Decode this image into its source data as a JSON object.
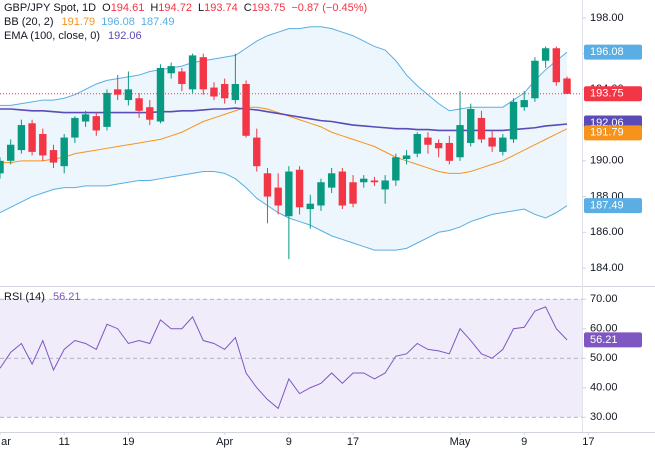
{
  "chart_data": [
    {
      "type": "candlestick",
      "title": "GBP/JPY Spot, 1D",
      "ohlc_prefixes": [
        "O",
        "H",
        "L",
        "C"
      ],
      "change_label": "−0.87 (−0.45%)",
      "up_color": "#089981",
      "down_color": "#f23645",
      "open": [
        189.3,
        190.0,
        190.6,
        192.1,
        191.5,
        190.6,
        189.7,
        191.3,
        192.2,
        192.5,
        191.9,
        194.0,
        193.4,
        193.5,
        193.0,
        192.2,
        194.9,
        195.0,
        194.0,
        195.8,
        194.1,
        194.3,
        193.4,
        194.3,
        191.3,
        189.3,
        188.5,
        186.9,
        189.5,
        187.3,
        187.5,
        188.5,
        189.4,
        188.8,
        188.8,
        188.9,
        188.4,
        188.9,
        190.1,
        190.4,
        191.3,
        191.0,
        191.0,
        190.2,
        191.0,
        192.4,
        191.3,
        190.5,
        191.2,
        193.0,
        193.5,
        195.6,
        196.3,
        194.61
      ],
      "high": [
        190.2,
        191.2,
        192.3,
        192.3,
        191.8,
        190.9,
        191.5,
        192.5,
        192.8,
        192.7,
        194.0,
        194.8,
        195.0,
        193.8,
        193.4,
        195.4,
        195.5,
        195.2,
        196.0,
        196.0,
        194.4,
        194.6,
        196.0,
        194.5,
        191.8,
        189.6,
        189.3,
        189.7,
        189.7,
        188.1,
        189.0,
        189.6,
        189.6,
        189.2,
        189.2,
        189.1,
        189.2,
        190.4,
        190.6,
        191.6,
        191.6,
        191.2,
        191.4,
        193.9,
        193.2,
        192.8,
        191.7,
        191.5,
        193.5,
        193.9,
        195.8,
        196.4,
        196.4,
        194.72
      ],
      "low": [
        189.0,
        189.8,
        190.4,
        190.3,
        190.0,
        189.6,
        189.3,
        191.0,
        191.9,
        191.4,
        191.7,
        193.4,
        193.1,
        192.4,
        192.0,
        192.1,
        194.6,
        193.9,
        193.8,
        193.7,
        193.4,
        193.2,
        193.2,
        191.3,
        189.4,
        186.5,
        187.0,
        184.5,
        187.0,
        186.2,
        187.2,
        188.2,
        187.3,
        187.4,
        188.5,
        188.6,
        187.6,
        188.6,
        189.8,
        190.2,
        190.4,
        190.2,
        189.8,
        190.0,
        190.8,
        191.0,
        190.5,
        190.3,
        191.0,
        192.8,
        193.3,
        195.2,
        194.2,
        193.74
      ],
      "close": [
        190.0,
        190.9,
        192.0,
        190.5,
        190.3,
        189.9,
        191.3,
        192.4,
        192.6,
        191.7,
        193.8,
        193.7,
        194.0,
        192.8,
        192.3,
        195.2,
        195.3,
        194.3,
        195.9,
        194.0,
        193.6,
        193.5,
        194.3,
        191.4,
        189.7,
        188.0,
        187.5,
        189.4,
        187.4,
        187.6,
        188.8,
        189.3,
        187.5,
        187.6,
        189.0,
        188.8,
        188.9,
        190.2,
        190.3,
        191.5,
        190.9,
        190.7,
        190.0,
        192.0,
        192.9,
        191.2,
        190.8,
        191.3,
        193.3,
        193.4,
        195.6,
        196.3,
        194.4,
        193.75
      ],
      "bb": {
        "label": "BB (20, 2)",
        "basis_color": "#f7931a",
        "band_color": "#5aaee3",
        "fill_color": "#edf6fc",
        "basis": [
          189.9,
          189.9,
          190.0,
          190.0,
          190.0,
          190.1,
          190.2,
          190.4,
          190.5,
          190.6,
          190.7,
          190.8,
          190.9,
          191.0,
          191.1,
          191.2,
          191.4,
          191.6,
          191.9,
          192.2,
          192.4,
          192.6,
          192.8,
          193.0,
          193.0,
          192.9,
          192.7,
          192.5,
          192.3,
          192.1,
          191.9,
          191.6,
          191.4,
          191.2,
          191.0,
          190.8,
          190.5,
          190.2,
          190.0,
          189.8,
          189.6,
          189.4,
          189.3,
          189.3,
          189.4,
          189.6,
          189.8,
          190.0,
          190.3,
          190.6,
          190.9,
          191.2,
          191.5,
          191.79
        ],
        "upper": [
          193.1,
          193.1,
          193.2,
          193.3,
          193.4,
          193.4,
          193.5,
          193.7,
          194.0,
          194.3,
          194.5,
          194.6,
          194.7,
          194.8,
          195.0,
          195.1,
          195.2,
          195.3,
          195.5,
          195.6,
          195.7,
          195.8,
          195.9,
          196.3,
          196.7,
          197.0,
          197.2,
          197.4,
          197.4,
          197.5,
          197.5,
          197.4,
          197.2,
          197.0,
          196.7,
          196.4,
          196.2,
          195.6,
          194.8,
          194.2,
          193.7,
          193.2,
          192.8,
          192.9,
          193.0,
          193.0,
          193.0,
          193.0,
          193.4,
          193.8,
          194.5,
          195.1,
          195.6,
          196.08
        ],
        "lower": [
          187.1,
          187.4,
          187.7,
          188.0,
          188.2,
          188.4,
          188.5,
          188.5,
          188.6,
          188.6,
          188.6,
          188.7,
          188.8,
          188.9,
          188.9,
          189.0,
          189.1,
          189.2,
          189.3,
          189.4,
          189.4,
          189.3,
          189.0,
          188.5,
          187.9,
          187.5,
          187.1,
          186.8,
          186.6,
          186.4,
          186.1,
          185.8,
          185.6,
          185.4,
          185.2,
          185.0,
          185.0,
          185.0,
          185.1,
          185.4,
          185.7,
          186.0,
          186.1,
          186.3,
          186.6,
          186.8,
          187.0,
          187.1,
          187.2,
          187.3,
          187.0,
          186.8,
          187.1,
          187.49
        ]
      },
      "ema": {
        "label": "EMA (100, close, 0)",
        "color": "#5b4bb7",
        "values": [
          192.9,
          192.9,
          192.85,
          192.8,
          192.8,
          192.75,
          192.7,
          192.7,
          192.7,
          192.7,
          192.7,
          192.7,
          192.7,
          192.7,
          192.7,
          192.75,
          192.75,
          192.8,
          192.8,
          192.85,
          192.9,
          192.9,
          192.95,
          192.9,
          192.85,
          192.75,
          192.65,
          192.55,
          192.45,
          192.35,
          192.25,
          192.2,
          192.1,
          192.0,
          191.95,
          191.9,
          191.85,
          191.8,
          191.8,
          191.75,
          191.75,
          191.7,
          191.7,
          191.7,
          191.7,
          191.7,
          191.7,
          191.7,
          191.75,
          191.8,
          191.85,
          191.95,
          192.0,
          192.06
        ]
      },
      "xlim": [
        0,
        54.4
      ],
      "ylim": [
        183.05,
        199.0
      ],
      "yticks": [
        {
          "value": 184,
          "label": "184.00"
        },
        {
          "value": 186,
          "label": "186.00"
        },
        {
          "value": 188,
          "label": "188.00"
        },
        {
          "value": 190,
          "label": "190.00"
        },
        {
          "value": 192,
          "label": "192.00"
        },
        {
          "value": 194,
          "label": "194.00"
        },
        {
          "value": 196,
          "label": "196.00"
        },
        {
          "value": 198,
          "label": "198.00"
        }
      ]
    },
    {
      "type": "line",
      "label": "RSI (14)",
      "color": "#7e57c2",
      "band_color": "#f0ecfa",
      "values": [
        46.6,
        52,
        55,
        48,
        56,
        46,
        53,
        56,
        55,
        53,
        61.5,
        60,
        55,
        56,
        55,
        63,
        60,
        60,
        64,
        56,
        55,
        53,
        57,
        45,
        40,
        36,
        33,
        43,
        38,
        40,
        41.5,
        45,
        41.5,
        45,
        45,
        43,
        45,
        50.7,
        51.5,
        55,
        53,
        52.5,
        51.5,
        60,
        56,
        51.5,
        50,
        53,
        60,
        60.5,
        66,
        67.4,
        60,
        56.21
      ],
      "levels": [
        70,
        50,
        30
      ],
      "xlim": [
        0,
        54.4
      ],
      "ylim": [
        25,
        73.8
      ],
      "yticks": [
        {
          "value": 30,
          "label": "30.00"
        },
        {
          "value": 40,
          "label": "40.00"
        },
        {
          "value": 50,
          "label": "50.00"
        },
        {
          "value": 60,
          "label": "60.00"
        },
        {
          "value": 70,
          "label": "70.00"
        }
      ],
      "xticks": [
        {
          "value": 0,
          "label": "ar"
        },
        {
          "value": 6,
          "label": "11"
        },
        {
          "value": 12,
          "label": "19"
        },
        {
          "value": 21,
          "label": "Apr"
        },
        {
          "value": 27,
          "label": "9"
        },
        {
          "value": 33,
          "label": "17"
        },
        {
          "value": 43,
          "label": "May"
        },
        {
          "value": 49,
          "label": "9"
        },
        {
          "value": 55,
          "label": "17"
        }
      ]
    }
  ]
}
